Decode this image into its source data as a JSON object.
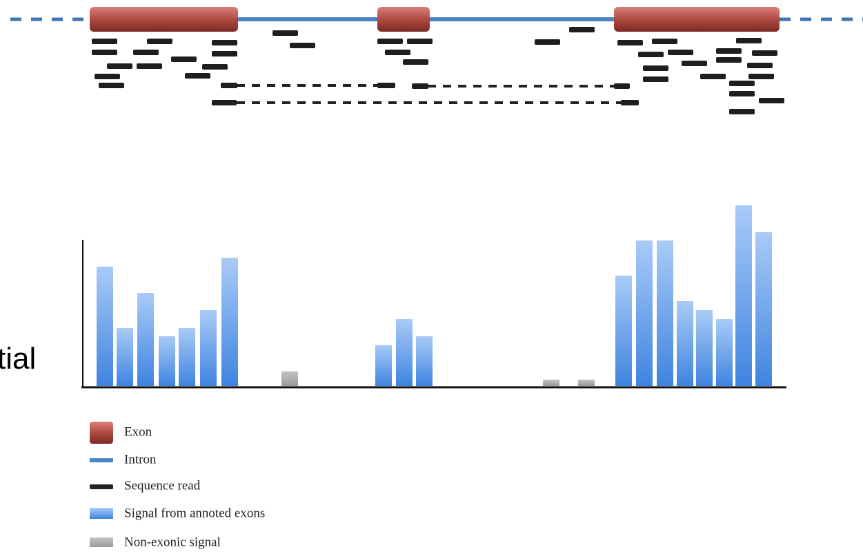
{
  "partial_text": "tial",
  "legend": [
    {
      "label": "Exon"
    },
    {
      "label": "Intron"
    },
    {
      "label": "Sequence read"
    },
    {
      "label": "Signal from annoted exons"
    },
    {
      "label": "Non-exonic signal"
    }
  ],
  "signal": {
    "values": [
      173,
      84,
      135,
      72,
      84,
      110,
      186,
      21,
      59,
      97,
      72,
      9,
      9,
      160,
      211,
      211,
      123,
      110,
      97,
      262,
      223
    ],
    "colors": [
      "#6aa6f2",
      "#6aa6f2",
      "#6aa6f2",
      "#6aa6f2",
      "#6aa6f2",
      "#6aa6f2",
      "#6aa6f2",
      "#a9a9a9",
      "#6aa6f2",
      "#6aa6f2",
      "#6aa6f2",
      "#a9a9a9",
      "#a9a9a9",
      "#6aa6f2",
      "#6aa6f2",
      "#6aa6f2",
      "#6aa6f2",
      "#6aa6f2",
      "#6aa6f2",
      "#6aa6f2",
      "#6aa6f2"
    ]
  }
}
